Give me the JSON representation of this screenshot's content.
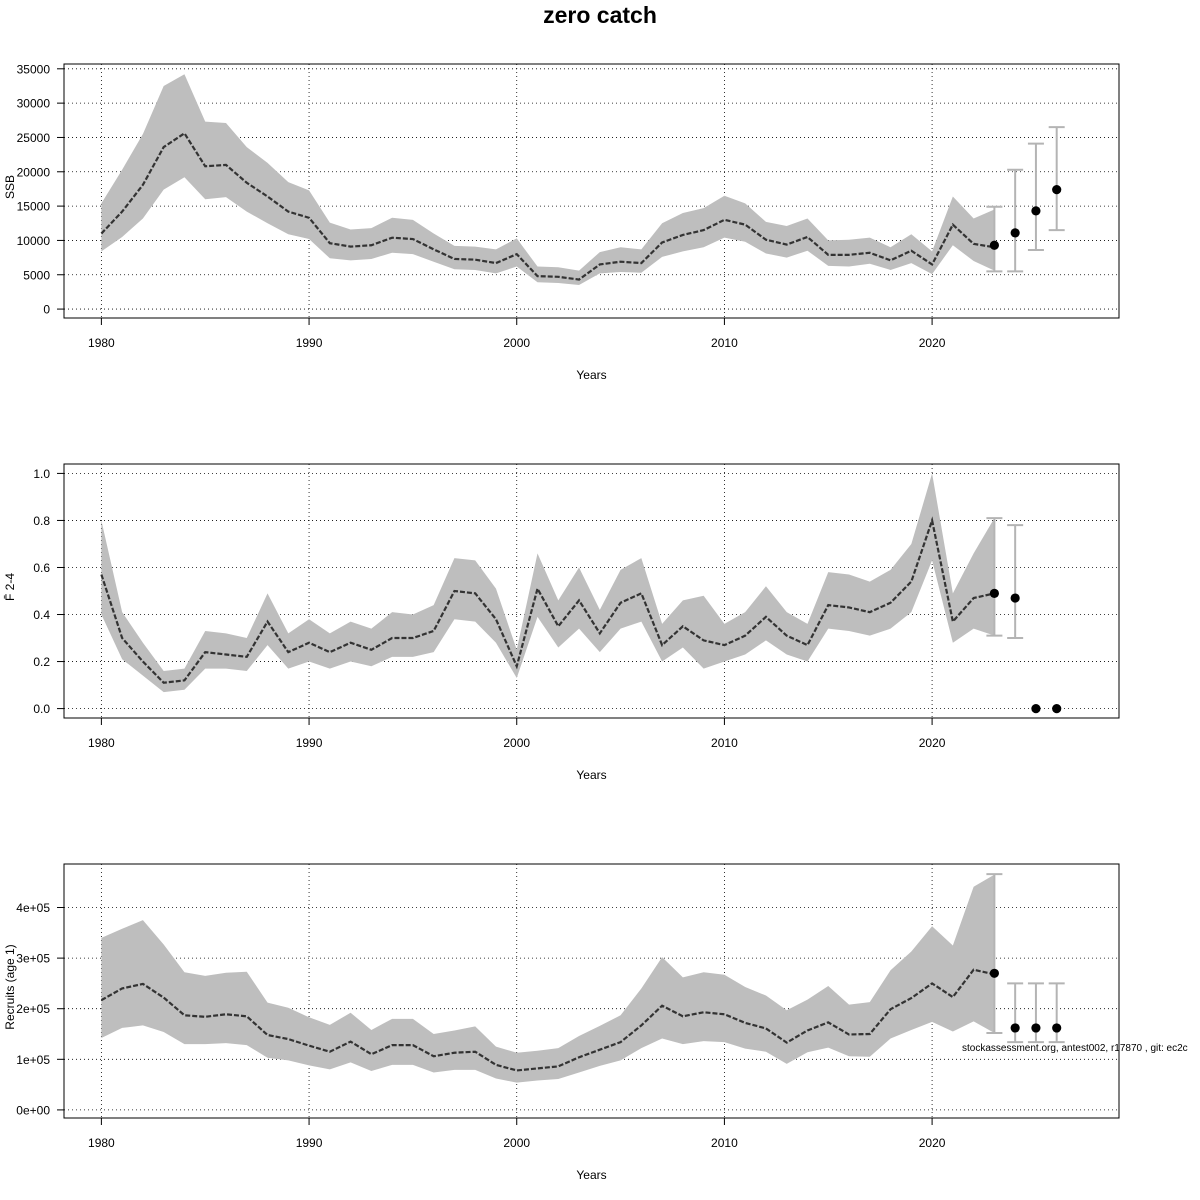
{
  "title": "zero catch",
  "footnote": "stockassessment.org, antest002, r17870 , git: ec2c",
  "colors": {
    "band": "#bebebe",
    "line": "#333333",
    "errorbar": "#b4b4b4",
    "point": "#000000",
    "grid": "#000000"
  },
  "chart_data": [
    {
      "type": "line",
      "ylabel": "SSB",
      "xlabel": "Years",
      "xlim": [
        1978.2,
        2029.0
      ],
      "ylim": [
        -1300,
        35700
      ],
      "x_ticks": [
        1980,
        1990,
        2000,
        2010,
        2020
      ],
      "y_ticks": [
        0,
        5000,
        10000,
        15000,
        20000,
        25000,
        30000,
        35000
      ],
      "y_tick_labels": [
        "0",
        "5000",
        "10000",
        "15000",
        "20000",
        "25000",
        "30000",
        "35000"
      ],
      "grid": true,
      "years": [
        1980,
        1981,
        1982,
        1983,
        1984,
        1985,
        1986,
        1987,
        1988,
        1989,
        1990,
        1991,
        1992,
        1993,
        1994,
        1995,
        1996,
        1997,
        1998,
        1999,
        2000,
        2001,
        2002,
        2003,
        2004,
        2005,
        2006,
        2007,
        2008,
        2009,
        2010,
        2011,
        2012,
        2013,
        2014,
        2015,
        2016,
        2017,
        2018,
        2019,
        2020,
        2021,
        2022,
        2023
      ],
      "estimate": [
        11000,
        14200,
        18100,
        23600,
        25600,
        20800,
        21000,
        18400,
        16400,
        14200,
        13300,
        9600,
        9100,
        9300,
        10400,
        10200,
        8700,
        7300,
        7200,
        6700,
        8000,
        4800,
        4700,
        4300,
        6500,
        6900,
        6700,
        9700,
        10800,
        11500,
        13000,
        12300,
        10100,
        9400,
        10500,
        7900,
        7900,
        8200,
        7100,
        8500,
        6500,
        12300,
        9500,
        9000
      ],
      "lower": [
        8400,
        10500,
        13200,
        17400,
        19200,
        16000,
        16300,
        14200,
        12500,
        10900,
        10200,
        7400,
        7100,
        7300,
        8200,
        8000,
        6900,
        5800,
        5700,
        5200,
        6200,
        3900,
        3800,
        3500,
        5200,
        5400,
        5300,
        7600,
        8400,
        9000,
        10400,
        9800,
        8100,
        7500,
        8500,
        6300,
        6200,
        6600,
        5700,
        6700,
        5100,
        9300,
        7000,
        5600
      ],
      "upper": [
        15400,
        20300,
        25500,
        32500,
        34200,
        27300,
        27100,
        23600,
        21300,
        18500,
        17300,
        12600,
        11600,
        11800,
        13300,
        13000,
        11000,
        9200,
        9100,
        8700,
        10300,
        6200,
        6100,
        5600,
        8300,
        9000,
        8700,
        12500,
        14000,
        14700,
        16500,
        15400,
        12700,
        12100,
        13200,
        10000,
        10100,
        10400,
        9000,
        10900,
        8400,
        16400,
        13200,
        14500
      ],
      "projection": {
        "years": [
          2023,
          2024,
          2025,
          2026
        ],
        "median": [
          9300,
          11100,
          14300,
          17400
        ],
        "lower": [
          5500,
          5500,
          8600,
          11500
        ],
        "upper": [
          14900,
          20300,
          24100,
          26500
        ]
      }
    },
    {
      "type": "line",
      "ylabel": "F̄ 2-4",
      "xlabel": "Years",
      "xlim": [
        1978.2,
        2029.0
      ],
      "ylim": [
        -0.04,
        1.04
      ],
      "x_ticks": [
        1980,
        1990,
        2000,
        2010,
        2020
      ],
      "y_ticks": [
        0.0,
        0.2,
        0.4,
        0.6,
        0.8,
        1.0
      ],
      "y_tick_labels": [
        "0.0",
        "0.2",
        "0.4",
        "0.6",
        "0.8",
        "1.0"
      ],
      "grid": true,
      "years": [
        1980,
        1981,
        1982,
        1983,
        1984,
        1985,
        1986,
        1987,
        1988,
        1989,
        1990,
        1991,
        1992,
        1993,
        1994,
        1995,
        1996,
        1997,
        1998,
        1999,
        2000,
        2001,
        2002,
        2003,
        2004,
        2005,
        2006,
        2007,
        2008,
        2009,
        2010,
        2011,
        2012,
        2013,
        2014,
        2015,
        2016,
        2017,
        2018,
        2019,
        2020,
        2021,
        2022,
        2023
      ],
      "estimate": [
        0.57,
        0.3,
        0.2,
        0.11,
        0.12,
        0.24,
        0.23,
        0.22,
        0.37,
        0.24,
        0.28,
        0.24,
        0.28,
        0.25,
        0.3,
        0.3,
        0.33,
        0.5,
        0.49,
        0.38,
        0.18,
        0.51,
        0.35,
        0.46,
        0.32,
        0.45,
        0.49,
        0.27,
        0.35,
        0.29,
        0.27,
        0.31,
        0.39,
        0.31,
        0.27,
        0.44,
        0.43,
        0.41,
        0.45,
        0.54,
        0.8,
        0.37,
        0.47,
        0.49
      ],
      "lower": [
        0.4,
        0.21,
        0.14,
        0.07,
        0.08,
        0.17,
        0.17,
        0.16,
        0.27,
        0.17,
        0.2,
        0.17,
        0.2,
        0.18,
        0.22,
        0.22,
        0.24,
        0.38,
        0.37,
        0.28,
        0.13,
        0.39,
        0.26,
        0.34,
        0.24,
        0.34,
        0.37,
        0.2,
        0.26,
        0.17,
        0.2,
        0.23,
        0.29,
        0.23,
        0.2,
        0.34,
        0.33,
        0.31,
        0.34,
        0.41,
        0.63,
        0.28,
        0.34,
        0.31
      ],
      "upper": [
        0.8,
        0.41,
        0.28,
        0.16,
        0.17,
        0.33,
        0.32,
        0.3,
        0.49,
        0.32,
        0.38,
        0.32,
        0.37,
        0.34,
        0.41,
        0.4,
        0.44,
        0.64,
        0.63,
        0.51,
        0.25,
        0.66,
        0.46,
        0.6,
        0.42,
        0.59,
        0.64,
        0.36,
        0.46,
        0.48,
        0.36,
        0.41,
        0.52,
        0.41,
        0.36,
        0.58,
        0.57,
        0.54,
        0.59,
        0.7,
        1.0,
        0.49,
        0.66,
        0.81
      ],
      "projection": {
        "years": [
          2023,
          2024,
          2025,
          2026
        ],
        "median": [
          0.49,
          0.47,
          0.0,
          0.0
        ],
        "lower": [
          0.31,
          0.3,
          null,
          null
        ],
        "upper": [
          0.81,
          0.78,
          null,
          null
        ]
      }
    },
    {
      "type": "line",
      "ylabel": "Recruits (age 1)",
      "xlabel": "Years",
      "xlim": [
        1978.2,
        2029.0
      ],
      "ylim": [
        -16000,
        486000
      ],
      "x_ticks": [
        1980,
        1990,
        2000,
        2010,
        2020
      ],
      "y_ticks": [
        0,
        100000,
        200000,
        300000,
        400000
      ],
      "y_tick_labels": [
        "0e+00",
        "1e+05",
        "2e+05",
        "3e+05",
        "4e+05"
      ],
      "grid": true,
      "years": [
        1980,
        1981,
        1982,
        1983,
        1984,
        1985,
        1986,
        1987,
        1988,
        1989,
        1990,
        1991,
        1992,
        1993,
        1994,
        1995,
        1996,
        1997,
        1998,
        1999,
        2000,
        2001,
        2002,
        2003,
        2004,
        2005,
        2006,
        2007,
        2008,
        2009,
        2010,
        2011,
        2012,
        2013,
        2014,
        2015,
        2016,
        2017,
        2018,
        2019,
        2020,
        2021,
        2022,
        2023
      ],
      "estimate": [
        217000,
        240000,
        249000,
        222000,
        187000,
        184000,
        189000,
        185000,
        148000,
        140000,
        127000,
        115000,
        135000,
        110000,
        128000,
        128000,
        106000,
        113000,
        115000,
        89000,
        78000,
        82000,
        86000,
        104000,
        119000,
        134000,
        167000,
        206000,
        185000,
        193000,
        189000,
        172000,
        161000,
        133000,
        157000,
        173000,
        149000,
        150000,
        199000,
        221000,
        250000,
        223000,
        277000,
        268000
      ],
      "lower": [
        142000,
        162000,
        167000,
        154000,
        130000,
        130000,
        132000,
        128000,
        103000,
        98000,
        88000,
        80000,
        94000,
        77000,
        89000,
        89000,
        74000,
        79000,
        79000,
        62000,
        54000,
        58000,
        61000,
        74000,
        87000,
        98000,
        122000,
        141000,
        130000,
        136000,
        134000,
        121000,
        115000,
        91000,
        114000,
        123000,
        106000,
        105000,
        141000,
        158000,
        174000,
        155000,
        175000,
        152000
      ],
      "upper": [
        340000,
        358000,
        375000,
        327000,
        272000,
        265000,
        271000,
        273000,
        212000,
        202000,
        183000,
        168000,
        192000,
        158000,
        180000,
        180000,
        150000,
        157000,
        165000,
        125000,
        113000,
        117000,
        122000,
        146000,
        166000,
        187000,
        240000,
        302000,
        262000,
        272000,
        267000,
        243000,
        226000,
        197000,
        218000,
        245000,
        208000,
        213000,
        276000,
        313000,
        363000,
        325000,
        441000,
        465000
      ],
      "projection": {
        "years": [
          2023,
          2024,
          2025,
          2026
        ],
        "median": [
          270000,
          162000,
          162000,
          162000
        ],
        "lower": [
          152000,
          134000,
          134000,
          134000
        ],
        "upper": [
          466000,
          250000,
          250000,
          250000
        ]
      }
    }
  ]
}
